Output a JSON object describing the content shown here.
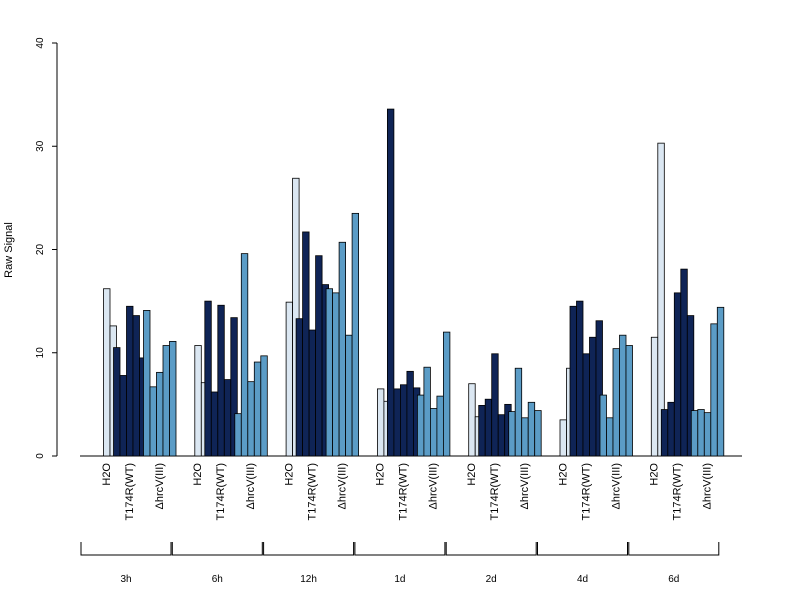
{
  "chart_data": {
    "type": "bar",
    "title": "",
    "xlabel": "",
    "ylabel": "Raw Signal",
    "ylim": [
      0,
      40
    ],
    "yticks": [
      0,
      10,
      20,
      30,
      40
    ],
    "grid": false,
    "legend": "none",
    "colors": {
      "H2O": "#dbe7f2",
      "T174R(WT)": "#0f2456",
      "ΔhrcV(III)": "#5b9cc6"
    },
    "group_labels": [
      "H2O",
      "T174R(WT)",
      "ΔhrcV(III)"
    ],
    "time_points": [
      {
        "label": "3h",
        "groups": [
          {
            "name": "H2O",
            "values": [
              0,
              16.2,
              12.6
            ]
          },
          {
            "name": "T174R(WT)",
            "values": [
              10.5,
              7.8,
              14.5,
              13.6,
              9.5
            ]
          },
          {
            "name": "ΔhrcV(III)",
            "values": [
              14.1,
              6.7,
              8.1,
              10.7,
              11.1
            ]
          }
        ]
      },
      {
        "label": "6h",
        "groups": [
          {
            "name": "H2O",
            "values": [
              0,
              10.7,
              7.1
            ]
          },
          {
            "name": "T174R(WT)",
            "values": [
              15.0,
              6.2,
              14.6,
              7.4,
              13.4
            ]
          },
          {
            "name": "ΔhrcV(III)",
            "values": [
              4.1,
              19.6,
              7.2,
              9.1,
              9.7
            ]
          }
        ]
      },
      {
        "label": "12h",
        "groups": [
          {
            "name": "H2O",
            "values": [
              0,
              14.9,
              26.9
            ]
          },
          {
            "name": "T174R(WT)",
            "values": [
              13.3,
              21.7,
              12.2,
              19.4,
              16.6
            ]
          },
          {
            "name": "ΔhrcV(III)",
            "values": [
              16.2,
              15.8,
              20.7,
              11.7,
              23.5
            ]
          }
        ]
      },
      {
        "label": "1d",
        "groups": [
          {
            "name": "H2O",
            "values": [
              0,
              6.5,
              5.3
            ]
          },
          {
            "name": "T174R(WT)",
            "values": [
              33.6,
              6.5,
              6.9,
              8.2,
              6.6
            ]
          },
          {
            "name": "ΔhrcV(III)",
            "values": [
              5.9,
              8.6,
              4.6,
              5.8,
              12.0
            ]
          }
        ]
      },
      {
        "label": "2d",
        "groups": [
          {
            "name": "H2O",
            "values": [
              0,
              7.0,
              3.8
            ]
          },
          {
            "name": "T174R(WT)",
            "values": [
              4.9,
              5.5,
              9.9,
              4.0,
              5.0
            ]
          },
          {
            "name": "ΔhrcV(III)",
            "values": [
              4.3,
              8.5,
              3.7,
              5.2,
              4.4
            ]
          }
        ]
      },
      {
        "label": "4d",
        "groups": [
          {
            "name": "H2O",
            "values": [
              0,
              3.5,
              8.5
            ]
          },
          {
            "name": "T174R(WT)",
            "values": [
              14.5,
              15.0,
              9.9,
              11.5,
              13.1
            ]
          },
          {
            "name": "ΔhrcV(III)",
            "values": [
              5.9,
              3.7,
              10.4,
              11.7,
              10.7
            ]
          }
        ]
      },
      {
        "label": "6d",
        "groups": [
          {
            "name": "H2O",
            "values": [
              0,
              11.5,
              30.3
            ]
          },
          {
            "name": "T174R(WT)",
            "values": [
              4.5,
              5.2,
              15.8,
              18.1,
              13.6
            ]
          },
          {
            "name": "ΔhrcV(III)",
            "values": [
              4.4,
              4.5,
              4.2,
              12.8,
              14.4
            ]
          }
        ]
      }
    ]
  }
}
